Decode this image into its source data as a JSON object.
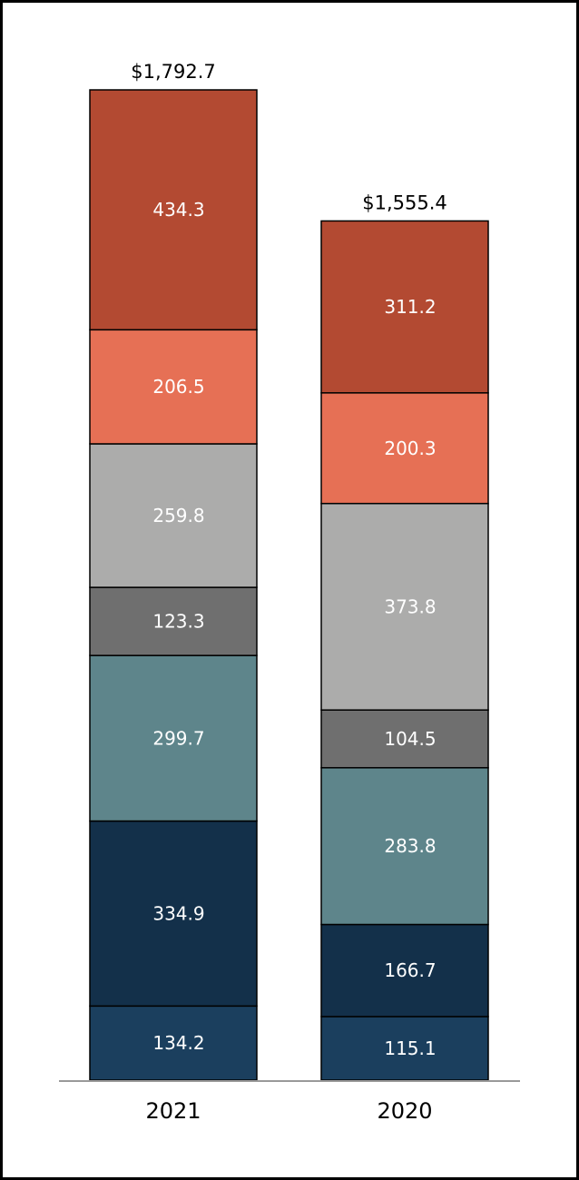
{
  "chart_data": {
    "type": "bar",
    "stacked": true,
    "title": "",
    "xlabel": "",
    "ylabel": "",
    "ylim": [
      0,
      1800
    ],
    "grid": false,
    "categories": [
      "2021",
      "2020"
    ],
    "totals": [
      "$1,792.7",
      "$1,555.4"
    ],
    "series": [
      {
        "color": "#1b3f5e",
        "values": [
          134.2,
          115.1
        ]
      },
      {
        "color": "#13304a",
        "values": [
          334.9,
          166.7
        ]
      },
      {
        "color": "#5e858b",
        "values": [
          299.7,
          283.8
        ]
      },
      {
        "color": "#6f6f6f",
        "values": [
          123.3,
          104.5
        ]
      },
      {
        "color": "#acacab",
        "values": [
          259.8,
          373.8
        ]
      },
      {
        "color": "#e67055",
        "values": [
          206.5,
          200.3
        ]
      },
      {
        "color": "#b34a32",
        "values": [
          434.3,
          311.2
        ]
      }
    ]
  }
}
